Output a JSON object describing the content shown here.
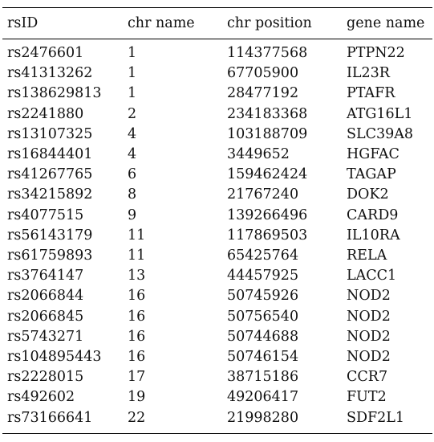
{
  "table": {
    "headers": [
      "rsID",
      "chr name",
      "chr position",
      "gene name"
    ],
    "rows": [
      [
        "rs2476601",
        "1",
        "114377568",
        "PTPN22"
      ],
      [
        "rs41313262",
        "1",
        "67705900",
        "IL23R"
      ],
      [
        "rs138629813",
        "1",
        "28477192",
        "PTAFR"
      ],
      [
        "rs2241880",
        "2",
        "234183368",
        "ATG16L1"
      ],
      [
        "rs13107325",
        "4",
        "103188709",
        "SLC39A8"
      ],
      [
        "rs16844401",
        "4",
        "3449652",
        "HGFAC"
      ],
      [
        "rs41267765",
        "6",
        "159462424",
        "TAGAP"
      ],
      [
        "rs34215892",
        "8",
        "21767240",
        "DOK2"
      ],
      [
        "rs4077515",
        "9",
        "139266496",
        "CARD9"
      ],
      [
        "rs56143179",
        "11",
        "117869503",
        "IL10RA"
      ],
      [
        "rs61759893",
        "11",
        "65425764",
        "RELA"
      ],
      [
        "rs3764147",
        "13",
        "44457925",
        "LACC1"
      ],
      [
        "rs2066844",
        "16",
        "50745926",
        "NOD2"
      ],
      [
        "rs2066845",
        "16",
        "50756540",
        "NOD2"
      ],
      [
        "rs5743271",
        "16",
        "50744688",
        "NOD2"
      ],
      [
        "rs104895443",
        "16",
        "50746154",
        "NOD2"
      ],
      [
        "rs2228015",
        "17",
        "38715186",
        "CCR7"
      ],
      [
        "rs492602",
        "19",
        "49206417",
        "FUT2"
      ],
      [
        "rs73166641",
        "22",
        "21998280",
        "SDF2L1"
      ]
    ]
  }
}
